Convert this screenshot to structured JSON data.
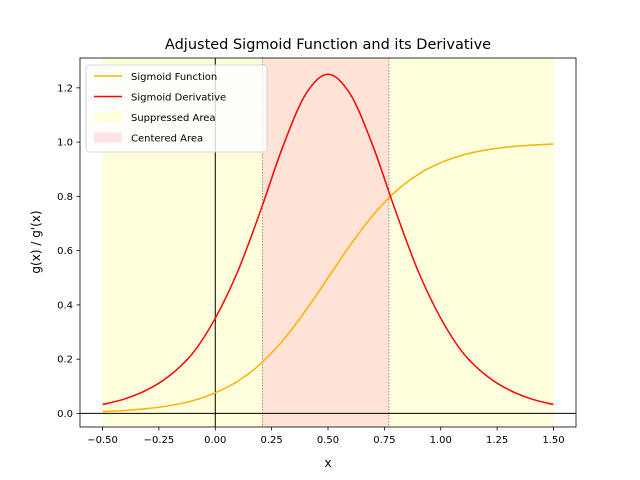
{
  "chart_data": {
    "type": "line",
    "title": "Adjusted Sigmoid Function and its Derivative",
    "xlabel": "x",
    "ylabel": "g(x) / g'(x)",
    "xlim": [
      -0.6,
      1.6
    ],
    "ylim": [
      -0.05,
      1.31
    ],
    "xticks": [
      -0.5,
      -0.25,
      0.0,
      0.25,
      0.5,
      0.75,
      1.0,
      1.25,
      1.5
    ],
    "xtick_labels": [
      "−0.50",
      "−0.25",
      "0.00",
      "0.25",
      "0.50",
      "0.75",
      "1.00",
      "1.25",
      "1.50"
    ],
    "yticks": [
      0.0,
      0.2,
      0.4,
      0.6,
      0.8,
      1.0,
      1.2
    ],
    "ytick_labels": [
      "0.0",
      "0.2",
      "0.4",
      "0.6",
      "0.8",
      "1.0",
      "1.2"
    ],
    "grid": false,
    "legend_position": "top-left",
    "reference_lines": {
      "x": 0,
      "y": 0,
      "color": "#000000"
    },
    "regions": [
      {
        "name": "Suppressed Area",
        "x": [
          -0.5,
          1.5
        ],
        "color": "#ffffcc"
      },
      {
        "name": "Centered Area",
        "x": [
          0.21,
          0.77
        ],
        "color": "#ffc0cb"
      }
    ],
    "region_boundaries": [
      0.21,
      0.77
    ],
    "series": [
      {
        "name": "Sigmoid Function",
        "color": "#ffb000",
        "x": [
          -0.5,
          -0.4,
          -0.3,
          -0.2,
          -0.1,
          0.0,
          0.1,
          0.2,
          0.3,
          0.4,
          0.5,
          0.6,
          0.7,
          0.8,
          0.9,
          1.0,
          1.1,
          1.2,
          1.3,
          1.4,
          1.5
        ],
        "y": [
          0.007,
          0.011,
          0.018,
          0.029,
          0.047,
          0.076,
          0.119,
          0.182,
          0.269,
          0.378,
          0.5,
          0.622,
          0.731,
          0.818,
          0.881,
          0.924,
          0.953,
          0.971,
          0.982,
          0.989,
          0.993
        ]
      },
      {
        "name": "Sigmoid Derivative",
        "color": "#ff0000",
        "x": [
          -0.5,
          -0.4,
          -0.3,
          -0.2,
          -0.1,
          0.0,
          0.1,
          0.2,
          0.3,
          0.4,
          0.5,
          0.6,
          0.7,
          0.8,
          0.9,
          1.0,
          1.1,
          1.2,
          1.3,
          1.4,
          1.5
        ],
        "y": [
          0.033,
          0.054,
          0.088,
          0.141,
          0.222,
          0.351,
          0.524,
          0.745,
          0.984,
          1.175,
          1.25,
          1.175,
          0.984,
          0.745,
          0.524,
          0.351,
          0.222,
          0.141,
          0.088,
          0.054,
          0.033
        ]
      }
    ]
  }
}
